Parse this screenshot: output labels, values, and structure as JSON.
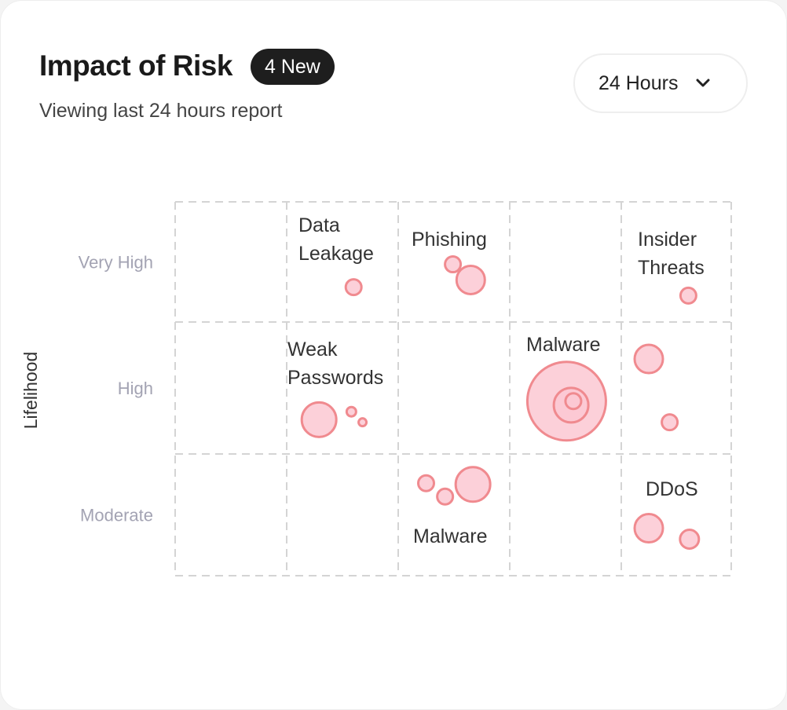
{
  "header": {
    "title": "Impact of Risk",
    "badge": "4 New",
    "subtitle": "Viewing last 24 hours report",
    "range_select": {
      "value": "24 Hours",
      "icon": "chevron-down-icon"
    }
  },
  "colors": {
    "bubble_fill": "#fcc8d2",
    "bubble_stroke": "#f08a8f",
    "grid": "#d4d4d4"
  },
  "chart_data": {
    "type": "scatter",
    "subtype": "bubble",
    "ylabel": "Lifelihood",
    "xlabel": "",
    "y_categories": [
      "Moderate",
      "High",
      "Very High"
    ],
    "xlim": [
      0,
      5
    ],
    "ylim": [
      0,
      3
    ],
    "grid": true,
    "cell_labels": [
      {
        "text": [
          "Data",
          "Leakage"
        ],
        "col": 1,
        "row": "Very High"
      },
      {
        "text": [
          "Phishing"
        ],
        "col": 2,
        "row": "Very High"
      },
      {
        "text": [
          "Insider",
          "Threats"
        ],
        "col": 4,
        "row": "Very High"
      },
      {
        "text": [
          "Weak",
          "Passwords"
        ],
        "col": 1,
        "row": "High"
      },
      {
        "text": [
          "Malware"
        ],
        "col": 3,
        "row": "High"
      },
      {
        "text": [
          "Malware"
        ],
        "col": 2,
        "row": "Moderate"
      },
      {
        "text": [
          "DDoS"
        ],
        "col": 4,
        "row": "Moderate"
      }
    ],
    "points": [
      {
        "x": 1.6,
        "y": 2.29,
        "size": 10
      },
      {
        "x": 2.49,
        "y": 2.48,
        "size": 10
      },
      {
        "x": 2.65,
        "y": 2.35,
        "size": 18
      },
      {
        "x": 4.61,
        "y": 2.22,
        "size": 10
      },
      {
        "x": 1.29,
        "y": 1.26,
        "size": 22
      },
      {
        "x": 1.58,
        "y": 1.32,
        "size": 6
      },
      {
        "x": 1.68,
        "y": 1.24,
        "size": 5
      },
      {
        "x": 3.51,
        "y": 1.4,
        "size": 50
      },
      {
        "x": 3.55,
        "y": 1.37,
        "size": 22
      },
      {
        "x": 3.57,
        "y": 1.4,
        "size": 10
      },
      {
        "x": 4.25,
        "y": 1.72,
        "size": 18
      },
      {
        "x": 4.44,
        "y": 1.24,
        "size": 10
      },
      {
        "x": 2.25,
        "y": 0.76,
        "size": 10
      },
      {
        "x": 2.42,
        "y": 0.65,
        "size": 10
      },
      {
        "x": 2.67,
        "y": 0.75,
        "size": 22
      },
      {
        "x": 4.25,
        "y": 0.39,
        "size": 18
      },
      {
        "x": 4.62,
        "y": 0.3,
        "size": 12
      }
    ]
  }
}
